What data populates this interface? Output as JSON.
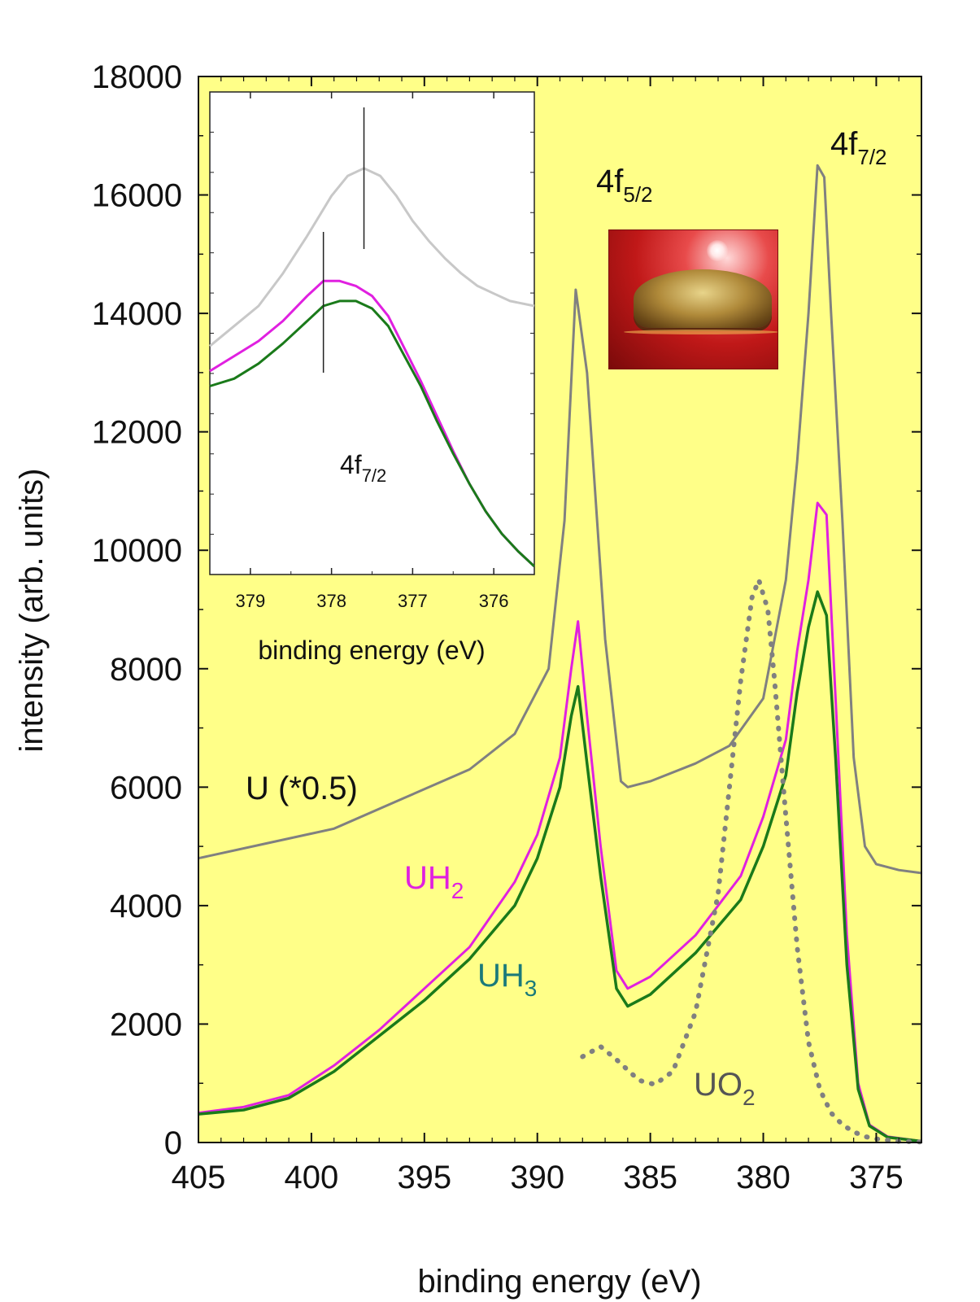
{
  "colors": {
    "plot_background": "#ffff88",
    "U": "#808080",
    "UH2": "#e020e0",
    "UH3": "#1a7a1a",
    "UO2": "#808080",
    "inset_U": "#c8c8c8",
    "label_UH3": "#1a7a7a"
  },
  "chart_data": {
    "type": "line",
    "xlabel": "binding energy (eV)",
    "ylabel": "intensity (arb. units)",
    "xlim": [
      405,
      373
    ],
    "ylim": [
      0,
      18000
    ],
    "x_ticks": [
      405,
      400,
      395,
      390,
      385,
      380,
      375
    ],
    "y_ticks": [
      0,
      2000,
      4000,
      6000,
      8000,
      10000,
      12000,
      14000,
      16000,
      18000
    ],
    "series": [
      {
        "name": "U (*0.5)",
        "x": [
          405,
          402,
          399,
          396,
          393,
          391,
          389.5,
          388.8,
          388.3,
          387.8,
          387.0,
          386.3,
          386.0,
          385,
          383,
          381.5,
          380,
          379,
          378.5,
          378,
          377.6,
          377.3,
          377.0,
          376.5,
          376,
          375.5,
          375,
          374,
          373
        ],
        "y": [
          4800,
          5050,
          5300,
          5800,
          6300,
          6900,
          8000,
          10500,
          14400,
          13000,
          8500,
          6100,
          6000,
          6100,
          6400,
          6700,
          7500,
          9500,
          11500,
          14000,
          16500,
          16300,
          14000,
          10500,
          6500,
          5000,
          4700,
          4600,
          4550
        ]
      },
      {
        "name": "UH2",
        "x": [
          405,
          403,
          401,
          399,
          397,
          395,
          393,
          391,
          390,
          389,
          388.5,
          388.2,
          387.8,
          387.2,
          386.5,
          386,
          385,
          383,
          381,
          380,
          379,
          378.5,
          378,
          377.6,
          377.2,
          376.8,
          376.3,
          375.8,
          375.3,
          374.5,
          373
        ],
        "y": [
          500,
          600,
          800,
          1300,
          1900,
          2600,
          3300,
          4400,
          5200,
          6500,
          8000,
          8800,
          7200,
          5000,
          2900,
          2600,
          2800,
          3500,
          4500,
          5500,
          6800,
          8300,
          9500,
          10800,
          10600,
          7500,
          3500,
          1000,
          300,
          100,
          20
        ]
      },
      {
        "name": "UH3",
        "x": [
          405,
          403,
          401,
          399,
          397,
          395,
          393,
          391,
          390,
          389,
          388.5,
          388.2,
          387.8,
          387.2,
          386.5,
          386,
          385,
          383,
          381,
          380,
          379,
          378.5,
          378,
          377.6,
          377.2,
          376.8,
          376.3,
          375.8,
          375.3,
          374.5,
          373
        ],
        "y": [
          480,
          550,
          750,
          1200,
          1800,
          2400,
          3100,
          4000,
          4800,
          6000,
          7200,
          7700,
          6400,
          4500,
          2600,
          2300,
          2500,
          3200,
          4100,
          5000,
          6200,
          7600,
          8700,
          9300,
          8900,
          6500,
          3000,
          900,
          280,
          90,
          20
        ]
      },
      {
        "name": "UO2",
        "style": "dotted",
        "x": [
          388,
          387.2,
          386.5,
          385.5,
          384.8,
          384,
          383,
          382,
          381.5,
          381,
          380.5,
          380.2,
          379.8,
          379.5,
          379,
          378.5,
          378,
          377.5,
          377,
          376.5,
          376,
          375.5,
          375,
          374,
          373
        ],
        "y": [
          1450,
          1620,
          1400,
          1050,
          980,
          1200,
          2200,
          4200,
          6000,
          7800,
          9200,
          9500,
          9000,
          7800,
          5500,
          3300,
          1700,
          900,
          500,
          300,
          180,
          100,
          60,
          20,
          10
        ]
      }
    ],
    "annotations": {
      "peak_5_2": {
        "main": "4f",
        "sub": "5/2"
      },
      "peak_7_2": {
        "main": "4f",
        "sub": "7/2"
      },
      "label_U": "U (*0.5)",
      "label_UH2": {
        "main": "UH",
        "sub": "2"
      },
      "label_UH3": {
        "main": "UH",
        "sub": "3"
      },
      "label_UO2": {
        "main": "UO",
        "sub": "2"
      }
    },
    "inset": {
      "type": "line",
      "xlabel": "binding energy (eV)",
      "xlim": [
        379.5,
        375.5
      ],
      "x_ticks": [
        379,
        378,
        377,
        376
      ],
      "label": {
        "main": "4f",
        "sub": "7/2"
      },
      "marker_lines_x": [
        377.6,
        378.1
      ],
      "series": [
        {
          "name": "U (*0.5)",
          "x": [
            379.5,
            379.2,
            378.9,
            378.6,
            378.3,
            378.0,
            377.8,
            377.6,
            377.4,
            377.2,
            377.0,
            376.8,
            376.6,
            376.4,
            376.2,
            376.0,
            375.8,
            375.5
          ],
          "y": [
            0.18,
            0.26,
            0.34,
            0.47,
            0.62,
            0.78,
            0.86,
            0.89,
            0.86,
            0.78,
            0.68,
            0.6,
            0.53,
            0.47,
            0.42,
            0.39,
            0.36,
            0.34
          ]
        },
        {
          "name": "UH2",
          "x": [
            379.5,
            379.2,
            378.9,
            378.6,
            378.3,
            378.1,
            377.9,
            377.7,
            377.5,
            377.3,
            377.1,
            376.9,
            376.7,
            376.5,
            376.3,
            376.1,
            375.9,
            375.7,
            375.5
          ],
          "y": [
            0.08,
            0.14,
            0.2,
            0.28,
            0.38,
            0.44,
            0.44,
            0.42,
            0.38,
            0.3,
            0.17,
            0.04,
            -0.1,
            -0.24,
            -0.37,
            -0.48,
            -0.57,
            -0.64,
            -0.7
          ]
        },
        {
          "name": "UH3",
          "x": [
            379.5,
            379.2,
            378.9,
            378.6,
            378.3,
            378.1,
            377.9,
            377.7,
            377.5,
            377.3,
            377.1,
            376.9,
            376.7,
            376.5,
            376.3,
            376.1,
            375.9,
            375.7,
            375.5
          ],
          "y": [
            0.02,
            0.05,
            0.11,
            0.19,
            0.28,
            0.34,
            0.36,
            0.36,
            0.33,
            0.26,
            0.14,
            0.02,
            -0.12,
            -0.25,
            -0.37,
            -0.48,
            -0.57,
            -0.64,
            -0.7
          ]
        }
      ]
    }
  }
}
